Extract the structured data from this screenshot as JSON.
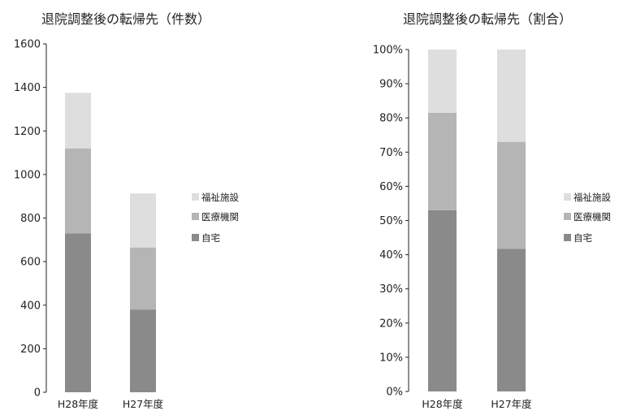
{
  "colors": {
    "jitaku": "#8a8a8a",
    "iryo": "#b5b5b5",
    "fukushi": "#dedede",
    "axis": "#222222"
  },
  "chart_data": [
    {
      "type": "bar",
      "stacked": true,
      "title": "退院調整後の転帰先（件数）",
      "categories": [
        "H28年度",
        "H27年度"
      ],
      "series": [
        {
          "name": "自宅",
          "values": [
            730,
            380
          ]
        },
        {
          "name": "医療機関",
          "values": [
            390,
            285
          ]
        },
        {
          "name": "福祉施設",
          "values": [
            255,
            248
          ]
        }
      ],
      "ylim": [
        0,
        1600
      ],
      "yticks": [
        0,
        200,
        400,
        600,
        800,
        1000,
        1200,
        1400,
        1600
      ],
      "ytick_labels": [
        "0",
        "200",
        "400",
        "600",
        "800",
        "1000",
        "1200",
        "1400",
        "1600"
      ],
      "legend": "right",
      "legend_order": [
        "福祉施設",
        "医療機関",
        "自宅"
      ],
      "grid": false
    },
    {
      "type": "bar",
      "stacked": true,
      "percent": true,
      "title": "退院調整後の転帰先（割合）",
      "categories": [
        "H28年度",
        "H27年度"
      ],
      "series": [
        {
          "name": "自宅",
          "values": [
            53,
            41.7
          ]
        },
        {
          "name": "医療機関",
          "values": [
            28.5,
            31.3
          ]
        },
        {
          "name": "福祉施設",
          "values": [
            18.5,
            27
          ]
        }
      ],
      "ylim": [
        0,
        100
      ],
      "yticks": [
        0,
        10,
        20,
        30,
        40,
        50,
        60,
        70,
        80,
        90,
        100
      ],
      "ytick_labels": [
        "0%",
        "10%",
        "20%",
        "30%",
        "40%",
        "50%",
        "60%",
        "70%",
        "80%",
        "90%",
        "100%"
      ],
      "legend": "right",
      "legend_order": [
        "福祉施設",
        "医療機関",
        "自宅"
      ],
      "grid": false
    }
  ]
}
